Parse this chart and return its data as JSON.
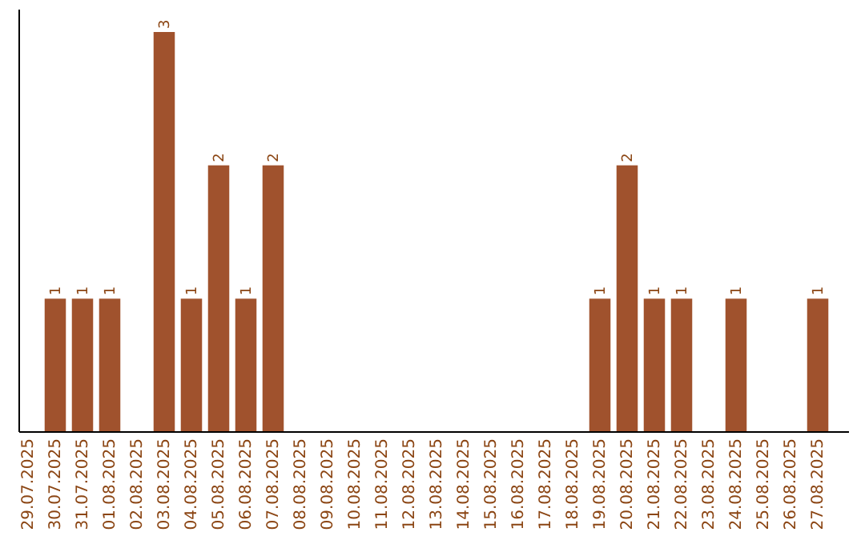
{
  "chart_data": {
    "type": "bar",
    "categories": [
      "29.07.2025",
      "30.07.2025",
      "31.07.2025",
      "01.08.2025",
      "02.08.2025",
      "03.08.2025",
      "04.08.2025",
      "05.08.2025",
      "06.08.2025",
      "07.08.2025",
      "08.08.2025",
      "09.08.2025",
      "10.08.2025",
      "11.08.2025",
      "12.08.2025",
      "13.08.2025",
      "14.08.2025",
      "15.08.2025",
      "16.08.2025",
      "17.08.2025",
      "18.08.2025",
      "19.08.2025",
      "20.08.2025",
      "21.08.2025",
      "22.08.2025",
      "23.08.2025",
      "24.08.2025",
      "25.08.2025",
      "26.08.2025",
      "27.08.2025"
    ],
    "values": [
      0,
      1,
      1,
      1,
      0,
      3,
      1,
      2,
      1,
      2,
      0,
      0,
      0,
      0,
      0,
      0,
      0,
      0,
      0,
      0,
      0,
      1,
      2,
      1,
      1,
      0,
      1,
      0,
      0,
      1
    ],
    "value_labels": [
      null,
      "1",
      "1",
      "1",
      null,
      "3",
      "1",
      "2",
      "1",
      "2",
      null,
      null,
      null,
      null,
      null,
      null,
      null,
      null,
      null,
      null,
      null,
      "1",
      "2",
      "1",
      "1",
      null,
      "1",
      null,
      null,
      "1"
    ],
    "color": "#a0522d"
  }
}
